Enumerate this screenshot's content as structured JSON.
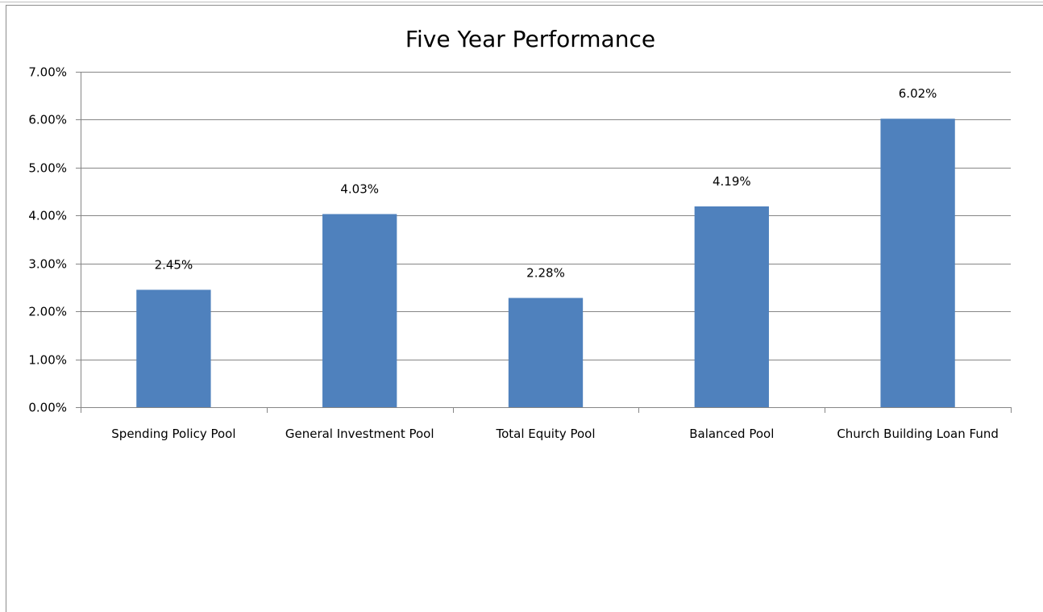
{
  "chart_data": {
    "type": "bar",
    "title": "Five Year Performance",
    "categories": [
      "Spending Policy Pool",
      "General Investment Pool",
      "Total Equity Pool",
      "Balanced Pool",
      "Church Building Loan Fund"
    ],
    "values": [
      2.45,
      4.03,
      2.28,
      4.19,
      6.02
    ],
    "value_labels": [
      "2.45%",
      "4.03%",
      "2.28%",
      "4.19%",
      "6.02%"
    ],
    "xlabel": "",
    "ylabel": "",
    "ylim": [
      0,
      7
    ],
    "yticks": [
      0,
      1,
      2,
      3,
      4,
      5,
      6,
      7
    ],
    "ytick_labels": [
      "0.00%",
      "1.00%",
      "2.00%",
      "3.00%",
      "4.00%",
      "5.00%",
      "6.00%",
      "7.00%"
    ],
    "grid": true,
    "legend": "none",
    "bar_color": "#4f81bd",
    "gridline_color": "#868686"
  }
}
